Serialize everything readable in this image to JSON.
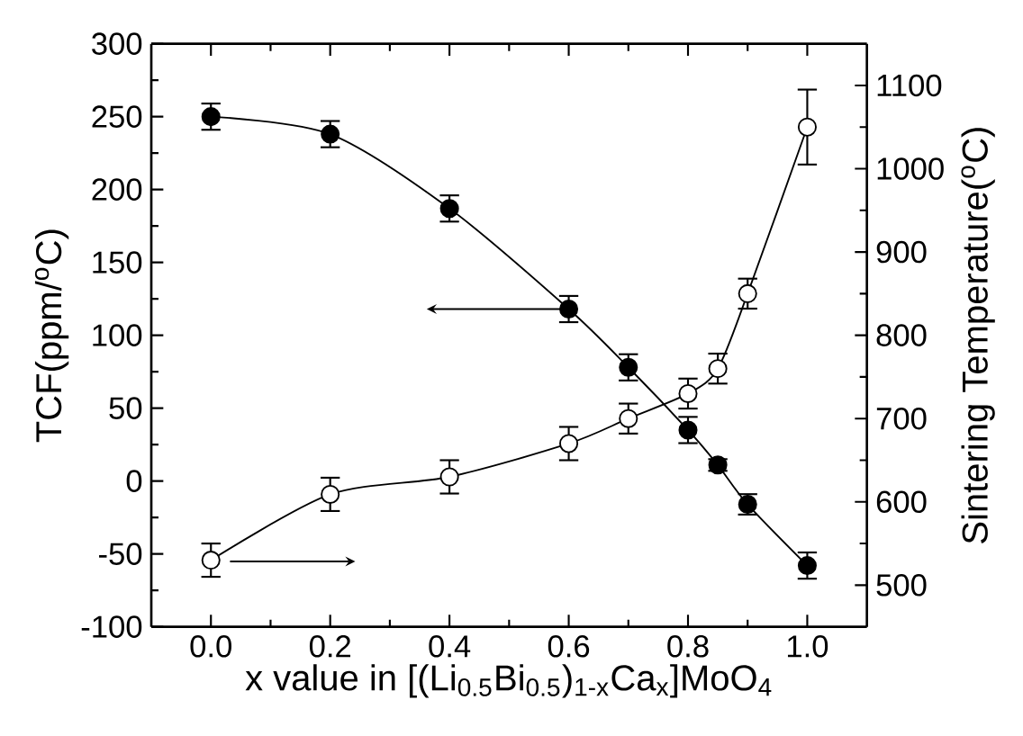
{
  "chart_data": {
    "type": "line",
    "xlabel": "x value in [(Li$_{0.5}$Bi$_{0.5}$)$_{1-x}$Ca$_{x}$]MoO$_{4}$",
    "ylabel": "TCF(ppm/$^{o}$C)",
    "y2label": "Sintering Temperature($^{o}$C)",
    "x": [
      0.0,
      0.2,
      0.4,
      0.6,
      0.7,
      0.8,
      0.85,
      0.9,
      1.0
    ],
    "xlim": [
      -0.1,
      1.1
    ],
    "xticks": [
      {
        "value": 0.0,
        "label": "0.0"
      },
      0.2,
      0.4,
      0.6,
      0.8,
      {
        "value": 1.0,
        "label": "1.0"
      }
    ],
    "ylim": [
      -100,
      300
    ],
    "yticks": [
      -100,
      -50,
      0,
      50,
      100,
      150,
      200,
      250,
      300
    ],
    "y2lim": [
      450,
      1150
    ],
    "y2ticks": [
      500,
      600,
      700,
      800,
      900,
      1000,
      1100
    ],
    "marker": "circle",
    "grid": false,
    "series": [
      {
        "color": "#000000",
        "values": [
          250,
          238,
          187,
          118,
          78,
          35,
          11,
          -16,
          -58
        ],
        "errors": [
          9,
          9,
          9,
          9,
          9,
          9,
          4,
          7,
          9
        ]
      },
      {
        "color": "#000000",
        "axis": "y2",
        "values": [
          530,
          609,
          630,
          670,
          700,
          730,
          760,
          850,
          1050
        ],
        "errors": [
          20,
          20,
          20,
          20,
          18,
          18,
          18,
          18,
          45
        ]
      }
    ]
  }
}
